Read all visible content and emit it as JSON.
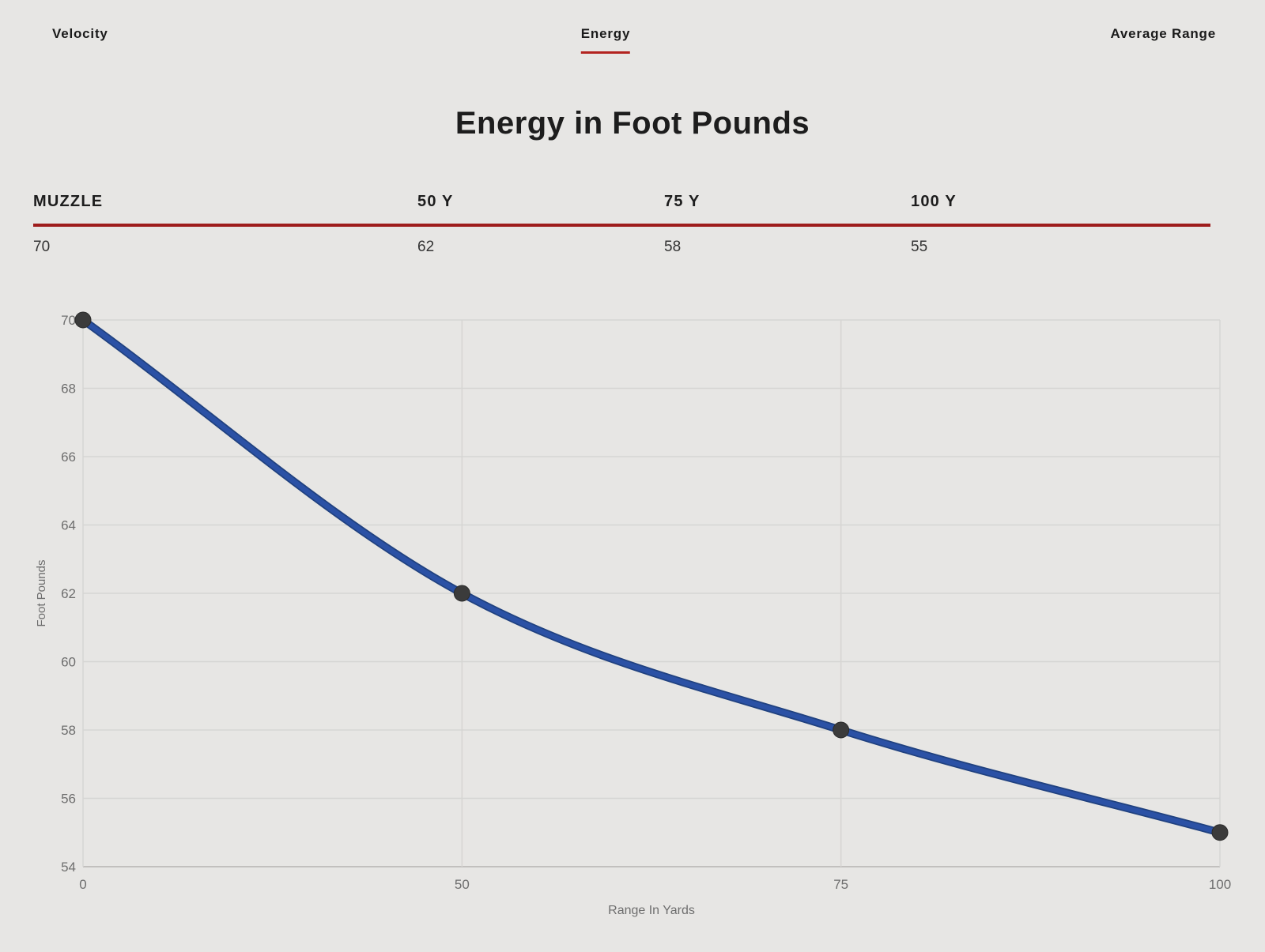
{
  "nav": {
    "tabs": [
      {
        "label": "Velocity",
        "active": false
      },
      {
        "label": "Energy",
        "active": true
      },
      {
        "label": "Average Range",
        "active": false
      }
    ]
  },
  "title": "Energy in Foot Pounds",
  "summary": {
    "columns": [
      "MUZZLE",
      "50 Y",
      "75 Y",
      "100 Y"
    ],
    "values": [
      "70",
      "62",
      "58",
      "55"
    ]
  },
  "chart_data": {
    "type": "line",
    "title": "Energy in Foot Pounds",
    "categories": [
      "0",
      "50",
      "75",
      "100"
    ],
    "series": [
      {
        "name": "Energy",
        "values": [
          70,
          62,
          58,
          55
        ]
      }
    ],
    "xlabel": "Range In Yards",
    "ylabel": "Foot Pounds",
    "ylim": [
      54,
      70
    ],
    "y_ticks": [
      54,
      56,
      58,
      60,
      62,
      64,
      66,
      68,
      70
    ],
    "grid": true,
    "legend": "none",
    "x_axis_type": "categorical-equal-spacing",
    "line_style": "smooth-monotone"
  },
  "colors": {
    "background": "#e7e6e4",
    "line_blue": "#2b51a5",
    "line_blue_edge": "#20417f",
    "point_fill": "#3b3b3b",
    "gridline": "#d6d5d3",
    "axis_line": "#b5b4b2",
    "axis_text": "#6e6e6e",
    "table_rule_red": "#9e1c1c",
    "tab_underline_red": "#b3231f"
  }
}
